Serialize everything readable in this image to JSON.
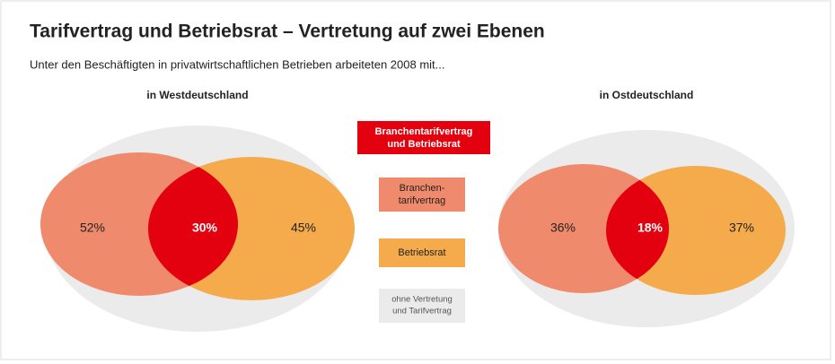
{
  "header": {
    "title": "Tarifvertrag und Betriebsrat – Vertretung auf zwei Ebenen",
    "subtitle": "Unter den Beschäftigten in privatwirtschaftlichen Betrieben arbeiteten 2008 mit..."
  },
  "panels": [
    {
      "heading": "in Westdeutschland",
      "left": "52%",
      "overlap": "30%",
      "right": "45%"
    },
    {
      "heading": "in Ostdeutschland",
      "left": "36%",
      "overlap": "18%",
      "right": "37%"
    }
  ],
  "legend": [
    {
      "lines": [
        "Branchentarifvertrag",
        "und Betriebsrat"
      ]
    },
    {
      "lines": [
        "Branchen-",
        "tarifvertrag"
      ]
    },
    {
      "lines": [
        "Betriebsrat"
      ]
    },
    {
      "lines": [
        "ohne Vertretung",
        "und Tarifvertrag"
      ]
    }
  ]
}
